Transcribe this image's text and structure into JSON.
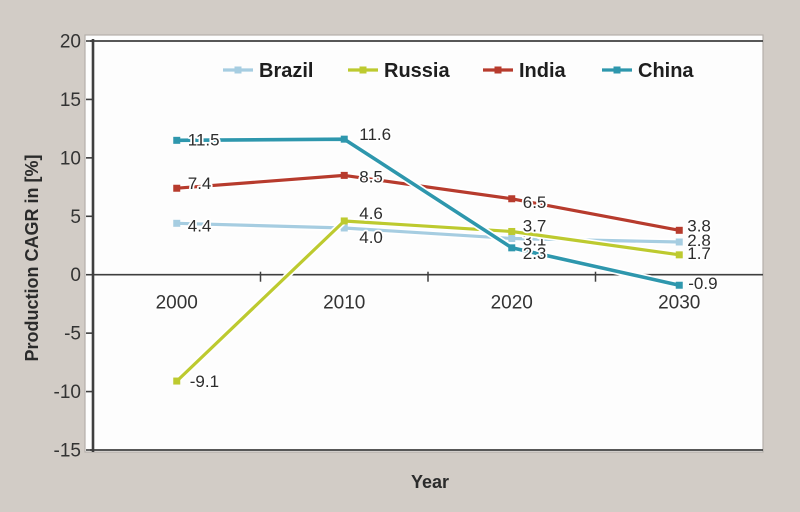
{
  "colors": {
    "background": "#d2ccc6",
    "plot_background": "#fdfdfd",
    "panel_border": "#b5afaa",
    "frame": "#3f3f3f",
    "label_text": "#2d2d2d"
  },
  "chart_data": {
    "type": "line",
    "title": "",
    "xlabel": "Year",
    "ylabel": "Production CAGR in [%]",
    "categories": [
      "2000",
      "2010",
      "2020",
      "2030"
    ],
    "ylim": [
      -15,
      20
    ],
    "yticks": [
      20,
      15,
      10,
      5,
      0,
      -5,
      -10,
      -15
    ],
    "grid": false,
    "legend_position": "top-inside",
    "marker": "square",
    "series": [
      {
        "name": "Brazil",
        "color": "#a6cde1",
        "values": [
          4.4,
          4.0,
          3.1,
          2.8
        ],
        "labels": [
          "4.4",
          "4.0",
          "3.1",
          "2.8"
        ],
        "label_offsets": [
          [
            11,
            2
          ],
          [
            15,
            9
          ],
          [
            11,
            1
          ],
          [
            8,
            -2
          ]
        ]
      },
      {
        "name": "Russia",
        "color": "#bdca2f",
        "values": [
          -9.1,
          4.6,
          3.7,
          1.7
        ],
        "labels": [
          "-9.1",
          "4.6",
          "3.7",
          "1.7"
        ],
        "label_offsets": [
          [
            13,
            0
          ],
          [
            15,
            -8
          ],
          [
            11,
            -6
          ],
          [
            8,
            -2
          ]
        ]
      },
      {
        "name": "India",
        "color": "#b73b2d",
        "values": [
          7.4,
          8.5,
          6.5,
          3.8
        ],
        "labels": [
          "7.4",
          "8.5",
          "6.5",
          "3.8"
        ],
        "label_offsets": [
          [
            11,
            -5
          ],
          [
            15,
            1
          ],
          [
            11,
            3
          ],
          [
            8,
            -5
          ]
        ]
      },
      {
        "name": "China",
        "color": "#2e97ad",
        "values": [
          11.5,
          11.6,
          2.3,
          -0.9
        ],
        "labels": [
          "11.5",
          "11.6",
          "2.3",
          "-0.9"
        ],
        "label_offsets": [
          [
            11,
            -1
          ],
          [
            15,
            -5
          ],
          [
            11,
            5
          ],
          [
            9,
            -2
          ]
        ]
      }
    ]
  }
}
